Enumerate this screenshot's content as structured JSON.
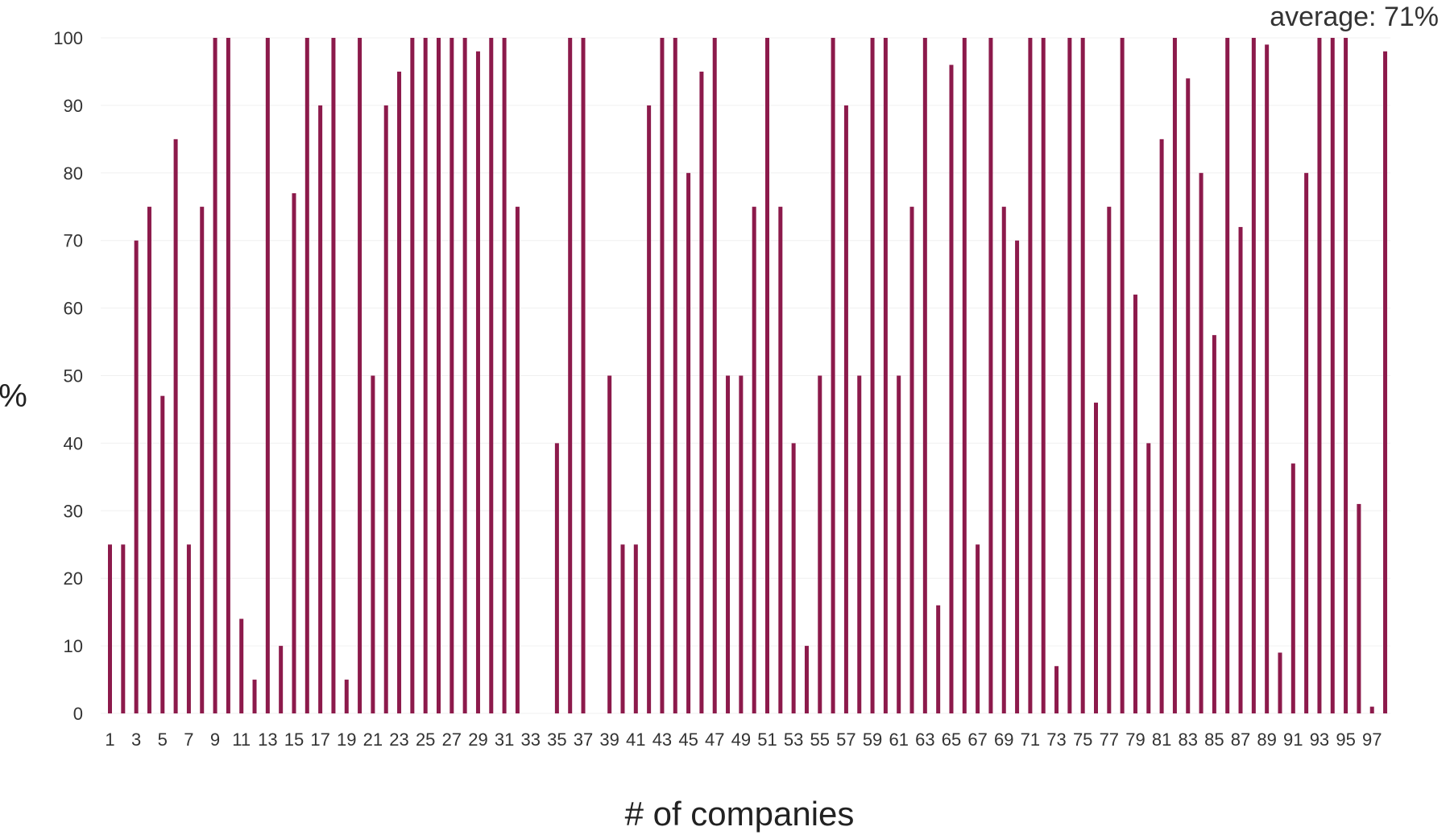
{
  "chart_data": {
    "type": "bar",
    "annotation": "average: 71%",
    "xlabel": "# of companies",
    "ylabel": "%",
    "ylim": [
      0,
      100
    ],
    "yticks": [
      0,
      10,
      20,
      30,
      40,
      50,
      60,
      70,
      80,
      90,
      100
    ],
    "grid": true,
    "bar_color": "#8c1a4b",
    "categories": [
      "1",
      "2",
      "3",
      "4",
      "5",
      "6",
      "7",
      "8",
      "9",
      "10",
      "11",
      "12",
      "13",
      "14",
      "15",
      "16",
      "17",
      "18",
      "19",
      "20",
      "21",
      "22",
      "23",
      "24",
      "25",
      "26",
      "27",
      "28",
      "29",
      "30",
      "31",
      "32",
      "33",
      "34",
      "35",
      "36",
      "37",
      "38",
      "39",
      "40",
      "41",
      "42",
      "43",
      "44",
      "45",
      "46",
      "47",
      "48",
      "49",
      "50",
      "51",
      "52",
      "53",
      "54",
      "55",
      "56",
      "57",
      "58",
      "59",
      "60",
      "61",
      "62",
      "63",
      "64",
      "65",
      "66",
      "67",
      "68",
      "69",
      "70",
      "71",
      "72",
      "73",
      "74",
      "75",
      "76",
      "77",
      "78",
      "79",
      "80",
      "81",
      "82",
      "83",
      "84",
      "85",
      "86",
      "87",
      "88",
      "89",
      "90",
      "91",
      "92",
      "93",
      "94",
      "95",
      "96",
      "97",
      "98"
    ],
    "xtick_labels": [
      "1",
      "3",
      "5",
      "7",
      "9",
      "11",
      "13",
      "15",
      "17",
      "19",
      "21",
      "23",
      "25",
      "27",
      "29",
      "31",
      "33",
      "35",
      "37",
      "39",
      "41",
      "43",
      "45",
      "47",
      "49",
      "51",
      "53",
      "55",
      "57",
      "59",
      "61",
      "63",
      "65",
      "67",
      "69",
      "71",
      "73",
      "75",
      "77",
      "79",
      "81",
      "83",
      "85",
      "87",
      "89",
      "91",
      "93",
      "95",
      "97"
    ],
    "values": [
      25,
      25,
      70,
      75,
      47,
      85,
      25,
      75,
      100,
      100,
      14,
      5,
      100,
      10,
      77,
      100,
      90,
      100,
      5,
      100,
      50,
      90,
      95,
      100,
      100,
      100,
      100,
      100,
      98,
      100,
      100,
      75,
      0,
      0,
      40,
      100,
      100,
      0,
      50,
      25,
      25,
      90,
      100,
      100,
      80,
      95,
      100,
      50,
      50,
      75,
      100,
      75,
      40,
      10,
      50,
      100,
      90,
      50,
      100,
      100,
      50,
      75,
      100,
      16,
      96,
      100,
      25,
      100,
      75,
      70,
      100,
      100,
      7,
      100,
      100,
      46,
      75,
      100,
      62,
      40,
      85,
      100,
      94,
      80,
      56,
      100,
      72,
      100,
      99,
      9,
      37,
      80,
      100,
      100,
      100,
      31,
      1,
      98
    ]
  }
}
